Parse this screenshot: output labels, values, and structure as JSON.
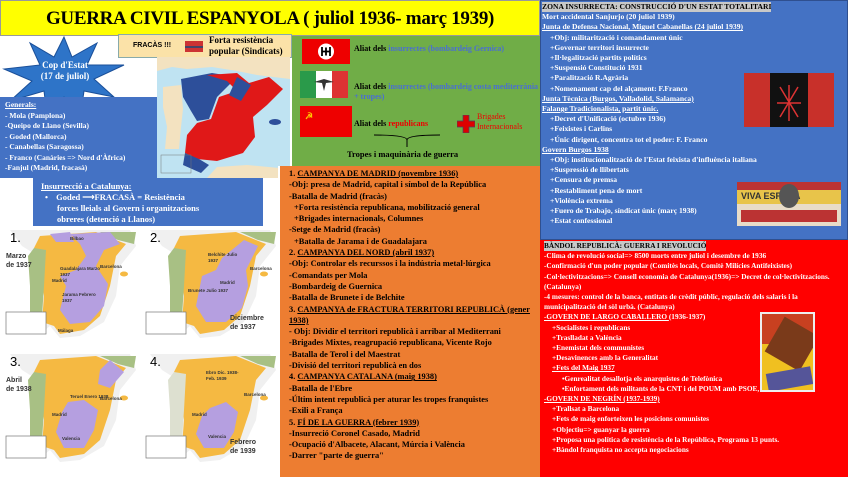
{
  "title": "GUERRA CIVIL ESPANYOLA ( juliol 1936- març 1939)",
  "fracas": {
    "label": "FRACÀS !!!",
    "text1": "Forta resistència",
    "text2": "popular (Sindicats)"
  },
  "coup": {
    "line1": "Cop d'Estat",
    "line2": "(17 de juliol)"
  },
  "generals": {
    "heading": "Generals:",
    "items": [
      "- Mola (Pamplona)",
      "-Queipo de Llano (Sevilla)",
      "- Goded (Mallorca)",
      "- Canabellas (Saragossa)",
      "- Franco (Canàries => Nord d'Àfrica)",
      "-Fanjul (Madrid, fracasà)"
    ]
  },
  "allies": [
    {
      "prefix": "Aliat dels ",
      "side": "insurrectes (bombardeig Gernica)",
      "color": "#4a6fd0",
      "flag": "nazi-germany-flag"
    },
    {
      "prefix": "Aliat dels ",
      "side": "insurrectes (bombardeig costa mediterrània + tropes)",
      "color": "#4a6fd0",
      "flag": "fascist-italy-flag"
    },
    {
      "prefix": "Aliat dels ",
      "side": "republicans",
      "color": "#e00000",
      "flag": "soviet-flag"
    }
  ],
  "brigades": {
    "line1": "Brigades",
    "line2": "Internacionals"
  },
  "troops": "Tropes i maquinària de guerra",
  "catalonia": {
    "heading": "Insurrecció a Catalunya:",
    "goded": "Goded",
    "fracas": "FRACASÀ = Resistència",
    "rest1": "forces lleials al Govern i organitzacions",
    "rest2": "obreres (detenció a Llanos)"
  },
  "maps": [
    {
      "num": "1.",
      "date": [
        "Marzo",
        "de 1937"
      ],
      "labels": [
        "Guadalajara Marzo 1937",
        "Madrid",
        "Jarama Febrero 1937",
        "Bilbao",
        "Barcelona",
        "Málaga"
      ]
    },
    {
      "num": "2.",
      "date": [
        "Diciembre",
        "de 1937"
      ],
      "labels": [
        "Belchite Julio 1937",
        "Brunete Julio 1937",
        "Madrid",
        "Barcelona"
      ]
    },
    {
      "num": "3.",
      "date": [
        "Abril",
        "de 1938"
      ],
      "labels": [
        "Teruel Enero 1938",
        "Madrid",
        "Valencia",
        "Barcelona"
      ]
    },
    {
      "num": "4.",
      "date": [
        "Febrero",
        "de 1939"
      ],
      "labels": [
        "Ebro Dic. 1938- Feb. 1939",
        "Madrid",
        "Valencia",
        "Barcelona"
      ]
    }
  ],
  "campaigns": [
    {
      "t": "h",
      "num": "1. ",
      "title": "CAMPANYA DE MADRID (novembre 1936)"
    },
    {
      "t": "l",
      "text": "-Obj: presa de Madrid, capital i símbol de la República"
    },
    {
      "t": "l",
      "text": "-Batalla de Madrid (fracàs)"
    },
    {
      "t": "s",
      "text": "+Forta resistència republicana, mobilització general"
    },
    {
      "t": "s",
      "text": "+Brigades internacionals, Columnes"
    },
    {
      "t": "l",
      "text": "-Setge de Madrid (fracàs)"
    },
    {
      "t": "s",
      "text": "+Batalla de Jarama i de Guadalajara"
    },
    {
      "t": "h",
      "num": "2. ",
      "title": "CAMPANYA DEL NORD (abril 1937)"
    },
    {
      "t": "l",
      "text": "-Obj: Controlar els recurssos i la indústria metal·lúrgica"
    },
    {
      "t": "l",
      "text": "-Comandats per Mola"
    },
    {
      "t": "l",
      "text": "-Bombardeig de Guernica"
    },
    {
      "t": "l",
      "text": "-Batalla de Brunete i de Belchite"
    },
    {
      "t": "h",
      "num": "3. ",
      "title": "CAMPANYA de FRACTURA TERRITORI REPUBLICÀ (gener 1938)"
    },
    {
      "t": "l",
      "text": "- Obj: Dividir el territori republicà i arribar al Mediterrani"
    },
    {
      "t": "l",
      "text": "-Brigades Mixtes, reagrupació republicana, Vicente Rojo"
    },
    {
      "t": "l",
      "text": "-Batalla de Terol i del Maestrat"
    },
    {
      "t": "l",
      "text": "-Divisió del territori republicà en dos"
    },
    {
      "t": "h",
      "num": "4. ",
      "title": "CAMPANYA CATALANA (maig 1938)"
    },
    {
      "t": "l",
      "text": "-Batalla de l'Ebre"
    },
    {
      "t": "l",
      "text": "-Últim intent republicà per aturar les tropes franquistes"
    },
    {
      "t": "l",
      "text": "-Exili a França"
    },
    {
      "t": "h",
      "num": "5. ",
      "title": "FÍ DE LA GUERRA (febrer 1939)"
    },
    {
      "t": "l",
      "text": "-Insurreció Coronel Casado, Madrid"
    },
    {
      "t": "l",
      "text": "-Ocupació d'Albacete, Alacant, Múrcia i València"
    },
    {
      "t": "l",
      "text": "-Darrer \"parte de guerra\""
    }
  ],
  "insurgent": {
    "heading": "ZONA INSURRECTA: CONSTRUCCIÓ D'UN ESTAT TOTALITARI",
    "lines": [
      {
        "i": 0,
        "u": false,
        "text": "Mort accidental Sanjurjo (20 juliol 1939)"
      },
      {
        "i": 0,
        "u": true,
        "text": "Junta de Defensa Nacional, Miguel Cabanellas (24 juliol 1939)"
      },
      {
        "i": 1,
        "u": false,
        "text": "+Obj: militarització i comandament únic"
      },
      {
        "i": 1,
        "u": false,
        "text": "+Governar territori insurrecte"
      },
      {
        "i": 1,
        "u": false,
        "text": "+Il·legalització partits polítics"
      },
      {
        "i": 1,
        "u": false,
        "text": "+Suspensió Constitució 1931"
      },
      {
        "i": 1,
        "u": false,
        "text": "+Paralització R.Agrària"
      },
      {
        "i": 1,
        "u": false,
        "text": "+Nomenament cap del alçament: F.Franco"
      },
      {
        "i": 0,
        "u": true,
        "text": "Junta Tècnica (Burgos, Valladolid, Salamanca)"
      },
      {
        "i": 0,
        "u": true,
        "text": "Falange Tradicionalista, partit únic."
      },
      {
        "i": 1,
        "u": false,
        "text": "+Decret d'Unificació (octubre 1936)"
      },
      {
        "i": 1,
        "u": false,
        "text": "+Feixistes i Carlins"
      },
      {
        "i": 1,
        "u": false,
        "text": "+Únic dirigent, concentra tot el poder: F. Franco"
      },
      {
        "i": 0,
        "u": true,
        "text": "Govern Burgos 1938"
      },
      {
        "i": 1,
        "u": false,
        "text": "+Obj: institucionalització de l'Estat feixista d'influència italiana"
      },
      {
        "i": 1,
        "u": false,
        "text": "+Suspressió de llibertats"
      },
      {
        "i": 1,
        "u": false,
        "text": "+Censura de premsa"
      },
      {
        "i": 1,
        "u": false,
        "text": "+Restabliment pena de mort"
      },
      {
        "i": 1,
        "u": false,
        "text": "+Violència extrema"
      },
      {
        "i": 1,
        "u": false,
        "text": "+Fuero de Trabajo, síndicat únic (març 1938)"
      },
      {
        "i": 1,
        "u": false,
        "text": "+Estat confessional"
      }
    ],
    "banner_text": "VIVA ESPAÑA"
  },
  "republic": {
    "heading": "BÀNDOL REPUBLICÀ: GUERRA I REVOLUCIÓ",
    "lines": [
      {
        "i": 0,
        "u": false,
        "text": "-Clima de revolució social=> 8500 morts entre juliol i desembre de 1936"
      },
      {
        "i": 0,
        "u": false,
        "text": "-Confirmació d'un poder popular (Comitès locals, Comitè Milícies Antifeixistes)"
      },
      {
        "i": 0,
        "u": false,
        "text": "-Col·lectivitzacions=> Consell economia de Catalunya(1936)=> Decret de col·lectivitzacions.(Catalunya)"
      },
      {
        "i": 0,
        "u": false,
        "text": "-4 mesures: control de la banca, entitats de crèdit públic, regulació dels salaris i la municipalització del sòl urbà. (Catalunya)"
      },
      {
        "i": 0,
        "u": false,
        "text": " "
      },
      {
        "i": 0,
        "u": true,
        "text": "-GOVERN DE LARGO CABALLERO ",
        "extra": "(1936-1937)"
      },
      {
        "i": 1,
        "u": false,
        "text": "+Socialistes i republicans"
      },
      {
        "i": 1,
        "u": false,
        "text": "+Traslladat a València"
      },
      {
        "i": 1,
        "u": false,
        "text": "+Enemistat dels communistes"
      },
      {
        "i": 1,
        "u": false,
        "text": "+Desavinences amb la Generalitat"
      },
      {
        "i": 1,
        "u": true,
        "text": "+Fets del Maig 1937"
      },
      {
        "i": 2,
        "u": false,
        "text": "•Genrealitat desallotja els anarquistes de Telefònica"
      },
      {
        "i": 2,
        "u": false,
        "text": "•Enfortament dels militants de la CNT i del POUM amb PSOE, ERC i UGT"
      },
      {
        "i": 0,
        "u": true,
        "text": "-GOVERN DE NEGRÍN (1937-1939)"
      },
      {
        "i": 1,
        "u": false,
        "text": "+Trallsat a Barcelona"
      },
      {
        "i": 1,
        "u": false,
        "text": "+Fets de maig enforteixen les posicions comunistes"
      },
      {
        "i": 1,
        "u": false,
        "text": "+Objectiu=> guanyar la guerra"
      },
      {
        "i": 1,
        "u": false,
        "text": "+Proposa una política de resistència de la República, Programa 13 punts."
      },
      {
        "i": 1,
        "u": false,
        "text": "+Bàndol franquista no accepta negociacions"
      }
    ]
  },
  "colors": {
    "title_bg": "#ffff00",
    "blue_panel": "#4472c4",
    "green_panel": "#70ad47",
    "orange_panel": "#ed7d31",
    "red_panel": "#ff0000",
    "nationalist_zone": "#f5b942",
    "republican_zone": "#b59fe0"
  }
}
